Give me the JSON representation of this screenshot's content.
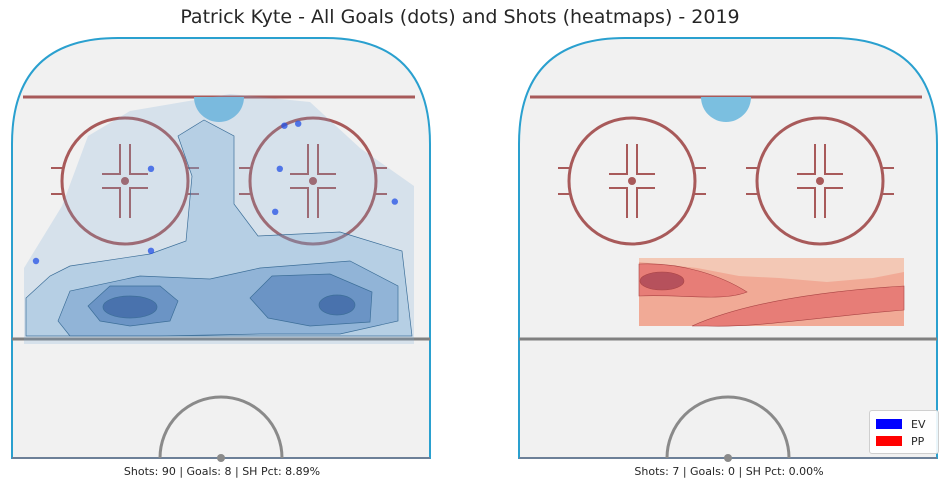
{
  "chart_data": {
    "type": "scatter",
    "title": "Patrick Kyte - All Goals (dots) and Shots (heatmaps) - 2019",
    "panels": [
      {
        "caption": "Shots: 90 | Goals: 8 | SH Pct: 8.89%",
        "strength": "EV",
        "heatmap_color": "#4f8fc2",
        "goals": [
          {
            "x": 14,
            "y": 86
          },
          {
            "x": 17,
            "y": 87
          },
          {
            "x": -15,
            "y": 65
          },
          {
            "x": 13,
            "y": 65
          },
          {
            "x": 38,
            "y": 49
          },
          {
            "x": 12,
            "y": 44
          },
          {
            "x": -15,
            "y": 25
          },
          {
            "x": -40,
            "y": 20
          }
        ]
      },
      {
        "caption": "Shots: 7 | Goals: 0 | SH Pct: 0.00%",
        "strength": "PP",
        "heatmap_color": "#e0484b",
        "goals": []
      }
    ],
    "legend": [
      {
        "label": "EV",
        "color": "#0000ff"
      },
      {
        "label": "PP",
        "color": "#ff0000"
      }
    ],
    "legend_position": "lower-right"
  }
}
